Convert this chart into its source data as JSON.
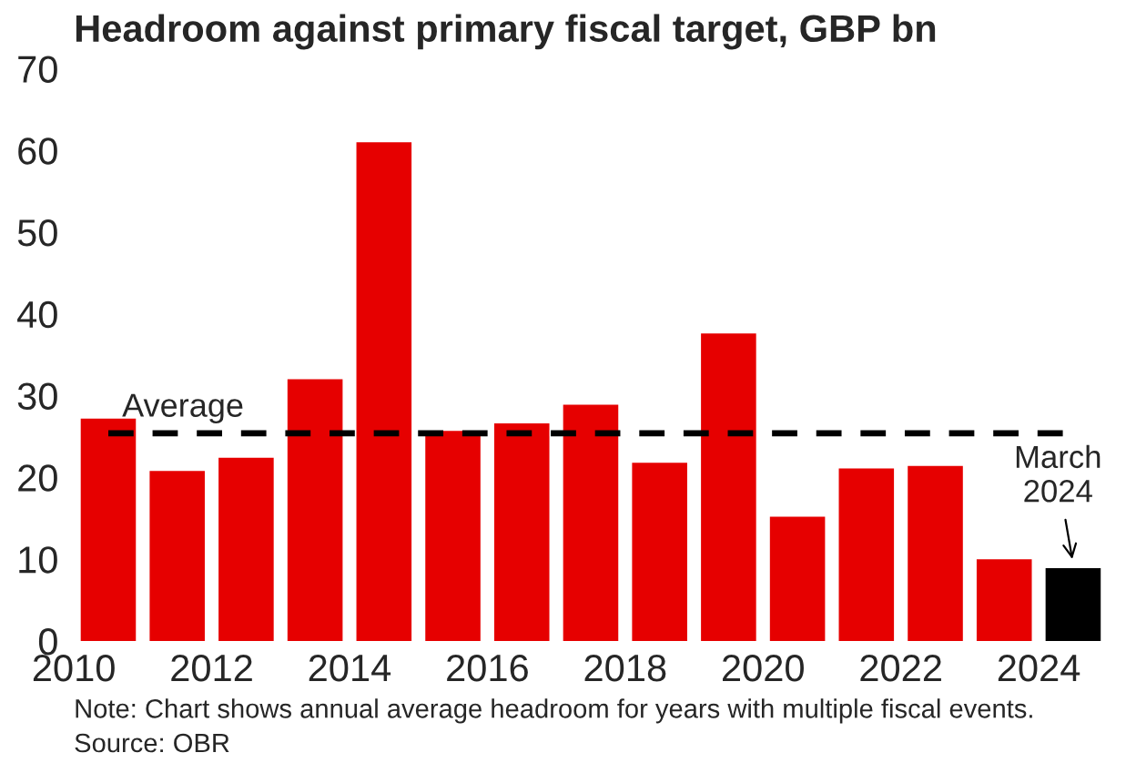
{
  "chart_data": {
    "type": "bar",
    "title": "Headroom against primary fiscal target, GBP bn",
    "x": [
      2010.5,
      2011.5,
      2012.5,
      2013.5,
      2014.5,
      2015.5,
      2016.5,
      2017.5,
      2018.5,
      2019.5,
      2020.5,
      2021.5,
      2022.5,
      2023.5,
      2024.5
    ],
    "values": [
      27.2,
      20.8,
      22.4,
      32.0,
      61.0,
      25.7,
      26.6,
      28.9,
      21.8,
      37.6,
      15.2,
      21.1,
      21.4,
      10.0,
      8.9
    ],
    "colors": [
      "#e60000",
      "#e60000",
      "#e60000",
      "#e60000",
      "#e60000",
      "#e60000",
      "#e60000",
      "#e60000",
      "#e60000",
      "#e60000",
      "#e60000",
      "#e60000",
      "#e60000",
      "#e60000",
      "#000000"
    ],
    "xlim": [
      2010,
      2025
    ],
    "xticks": [
      2010,
      2012,
      2014,
      2016,
      2018,
      2020,
      2022,
      2024
    ],
    "ylim": [
      0,
      70
    ],
    "yticks": [
      0,
      10,
      20,
      30,
      40,
      50,
      60,
      70
    ],
    "ref_lines": [
      {
        "axis": "y",
        "value": 25.4,
        "label": "Average",
        "color": "#000000",
        "line_style": "dashed"
      }
    ],
    "annotations": [
      {
        "text": "March\n2024",
        "x": 2024.5,
        "y": 8.9
      },
      "Note: Chart shows annual average headroom for years with multiple fiscal events.",
      "Source: OBR"
    ],
    "grid": false,
    "legend": false
  }
}
